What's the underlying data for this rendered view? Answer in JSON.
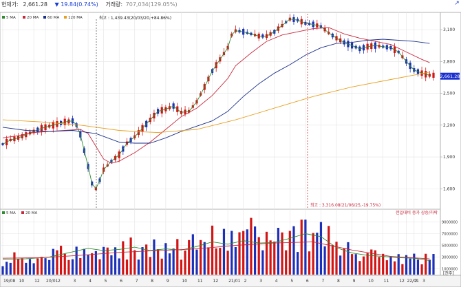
{
  "header": {
    "price_label": "현재가:",
    "price_value": "2,661.28",
    "change_arrow": "▼",
    "change_value": "19.84(0.74%)",
    "volume_label": "거래량:",
    "volume_value": "707,034(129.05%)",
    "corner_icon": "arrow-icon"
  },
  "price_legend": [
    {
      "label": "5 MA",
      "color": "#2e8b2e"
    },
    {
      "label": "20 MA",
      "color": "#c8283c"
    },
    {
      "label": "60 MA",
      "color": "#1a2f8a"
    },
    {
      "label": "120 MA",
      "color": "#e8a020"
    }
  ],
  "volume_legend": [
    {
      "label": "5 MA",
      "color": "#2e8b2e"
    },
    {
      "label": "20 MA",
      "color": "#c8283c"
    }
  ],
  "annotations": {
    "high": "최고 : 1,439.43(20/03/20,+84.86%)",
    "low": "최고 : 3,316.08(21/06/25,-19.75%)",
    "volume_note": "전일대비 증가 상승/하락",
    "price_tag": "2,661.28",
    "volume_unit": "[천주]"
  },
  "colors": {
    "up": "#d21414",
    "down": "#1c2fb8",
    "grid": "#e4e4e4",
    "tag": "#1a2fd0"
  },
  "chart_data": [
    {
      "type": "candlestick",
      "title": "",
      "y_ticks": [
        "3,100",
        "2,800",
        "2,500",
        "2,200",
        "1,900",
        "1,600"
      ],
      "y_tick_values": [
        3100,
        2800,
        2500,
        2200,
        1900,
        1600
      ],
      "ylim": [
        1420,
        3250
      ],
      "last_price": 2661.28,
      "grid": true,
      "series": [
        {
          "name": "5 MA",
          "type": "line",
          "x": [
            0,
            2,
            4,
            6,
            8,
            10,
            12,
            14,
            16,
            18,
            19,
            20,
            22,
            23,
            24,
            25,
            26,
            28,
            30,
            32,
            34,
            36,
            38,
            40,
            42,
            44,
            46,
            48,
            50,
            52,
            54,
            56,
            58,
            59,
            60,
            62,
            64,
            66,
            68,
            70,
            72,
            74,
            76,
            78,
            80,
            82,
            84,
            86,
            88,
            90,
            92,
            94,
            96,
            98,
            100,
            102,
            104,
            106,
            108,
            110
          ],
          "values": [
            2020,
            2060,
            2080,
            2110,
            2140,
            2170,
            2190,
            2210,
            2230,
            2240,
            2200,
            2110,
            1810,
            1650,
            1600,
            1680,
            1780,
            1860,
            1920,
            2030,
            2090,
            2170,
            2250,
            2330,
            2350,
            2380,
            2320,
            2330,
            2420,
            2560,
            2710,
            2820,
            2930,
            3050,
            3090,
            3080,
            3060,
            3040,
            3040,
            3080,
            3140,
            3200,
            3190,
            3160,
            3150,
            3130,
            3070,
            3020,
            2980,
            2950,
            2920,
            2940,
            2950,
            2940,
            2930,
            2890,
            2800,
            2720,
            2690,
            2670
          ]
        },
        {
          "name": "20 MA",
          "type": "line",
          "x": [
            0,
            4,
            8,
            12,
            16,
            20,
            22,
            24,
            26,
            28,
            30,
            34,
            38,
            42,
            46,
            50,
            54,
            58,
            60,
            64,
            68,
            72,
            76,
            80,
            84,
            88,
            92,
            96,
            100,
            104,
            108,
            110
          ],
          "values": [
            2080,
            2100,
            2130,
            2140,
            2150,
            2160,
            2120,
            2000,
            1880,
            1840,
            1860,
            1940,
            2040,
            2160,
            2280,
            2360,
            2480,
            2640,
            2760,
            2880,
            2990,
            3050,
            3080,
            3110,
            3120,
            3060,
            3020,
            2990,
            2960,
            2890,
            2820,
            2790
          ]
        },
        {
          "name": "60 MA",
          "type": "line",
          "x": [
            0,
            6,
            12,
            18,
            24,
            30,
            34,
            38,
            42,
            46,
            50,
            54,
            58,
            62,
            66,
            70,
            74,
            78,
            82,
            86,
            90,
            94,
            98,
            102,
            106,
            110
          ],
          "values": [
            2180,
            2150,
            2140,
            2150,
            2120,
            2040,
            2030,
            2030,
            2080,
            2140,
            2190,
            2240,
            2330,
            2470,
            2590,
            2690,
            2770,
            2860,
            2930,
            2970,
            2980,
            3000,
            3010,
            3000,
            2990,
            2970
          ]
        },
        {
          "name": "120 MA",
          "type": "line",
          "x": [
            0,
            10,
            20,
            30,
            34,
            40,
            50,
            60,
            70,
            80,
            90,
            100,
            110
          ],
          "values": [
            2250,
            2230,
            2200,
            2150,
            2140,
            2130,
            2160,
            2250,
            2360,
            2470,
            2560,
            2630,
            2700
          ]
        }
      ]
    },
    {
      "type": "bar",
      "title": "",
      "y_ticks": [
        "9000000",
        "7000000",
        "5000000",
        "3000000",
        "1000000"
      ],
      "y_tick_values": [
        9000000,
        7000000,
        5000000,
        3000000,
        1000000
      ],
      "ylim": [
        0,
        10000000
      ],
      "x_ticks": [
        "19/08",
        "10",
        "12",
        "20/01",
        "2",
        "3",
        "4",
        "5",
        "6",
        "7",
        "8",
        "9",
        "10",
        "11",
        "12",
        "21/01",
        "2",
        "3",
        "4",
        "5",
        "6",
        "7",
        "8",
        "9",
        "10",
        "11",
        "12",
        "22/01",
        "2",
        "3"
      ],
      "x_tick_positions": [
        0,
        4,
        8,
        11,
        14,
        18,
        22,
        26,
        30,
        34,
        38,
        42,
        46,
        50,
        54,
        58,
        62,
        66,
        70,
        74,
        78,
        82,
        86,
        90,
        94,
        98,
        102,
        104,
        106,
        108
      ],
      "series": [
        {
          "name": "5 MA",
          "type": "line",
          "x": [
            0,
            6,
            12,
            18,
            22,
            26,
            30,
            34,
            38,
            42,
            46,
            50,
            54,
            58,
            62,
            66,
            70,
            74,
            78,
            82,
            86,
            90,
            94,
            98,
            102,
            106,
            110
          ],
          "values": [
            2600000,
            2700000,
            3000000,
            3900000,
            4500000,
            4100000,
            4300000,
            4700000,
            4100000,
            4400000,
            4200000,
            4800000,
            5600000,
            5200000,
            5800000,
            5400000,
            5500000,
            6200000,
            7000000,
            6500000,
            4600000,
            3700000,
            3300000,
            3100000,
            2900000,
            2800000,
            2400000
          ]
        },
        {
          "name": "20 MA",
          "type": "line",
          "x": [
            0,
            10,
            20,
            30,
            40,
            50,
            60,
            70,
            80,
            90,
            100,
            110
          ],
          "values": [
            2800000,
            2900000,
            3300000,
            3800000,
            4100000,
            4400000,
            5000000,
            5400000,
            5600000,
            4200000,
            3100000,
            2700000
          ]
        }
      ]
    }
  ]
}
